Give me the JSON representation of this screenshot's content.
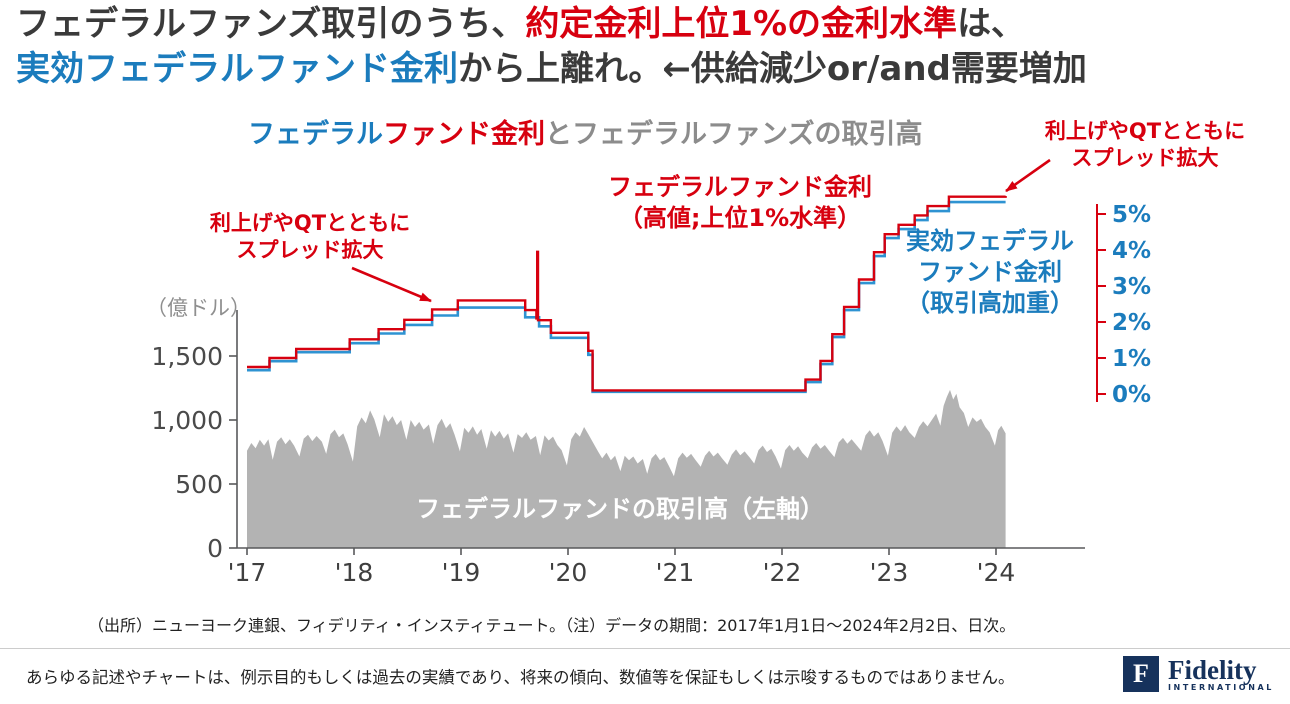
{
  "colors": {
    "red": "#d7000f",
    "blue": "#1b7cbd",
    "blue_line": "#2e93d2",
    "dark": "#3a3a3a",
    "gray": "#8c8c8c",
    "area": "#b3b3b3",
    "axis": "#58595b",
    "navy": "#16325c"
  },
  "headline": {
    "line1": [
      {
        "text": "フェデラルファンズ取引のうち、",
        "color": "dark"
      },
      {
        "text": "約定金利上位1%の金利水準",
        "color": "red"
      },
      {
        "text": "は、",
        "color": "dark"
      }
    ],
    "line2": [
      {
        "text": "実効フェデラルファンド金利",
        "color": "blue"
      },
      {
        "text": "から上離れ。←供給減少or/and需要増加",
        "color": "dark"
      }
    ]
  },
  "title_segments": [
    {
      "text": "フェデラル",
      "color": "blue"
    },
    {
      "text": "ファンド金利",
      "color": "red"
    },
    {
      "text": "とフェデラルファンズの取引高",
      "color": "gray"
    }
  ],
  "annotations": {
    "spread_left": {
      "lines": [
        "利上げやQTとともに",
        "スプレッド拡大"
      ]
    },
    "spread_right": {
      "lines": [
        "利上げやQTとともに",
        "スプレッド拡大"
      ]
    },
    "rate_high": {
      "lines": [
        "フェデラルファンド金利",
        "（高値;上位1%水準）"
      ]
    },
    "rate_eff": {
      "lines": [
        "実効フェデラル",
        "ファンド金利",
        "（取引高加重）"
      ]
    },
    "unit": "（億ドル）",
    "volume_label": "フェデラルファンドの取引高（左軸）"
  },
  "chart_data": {
    "type": "combo",
    "title": "フェデラルファンド金利とフェデラルファンズの取引高",
    "xlabel": "",
    "left_axis": {
      "label": "（億ドル）",
      "ticks": [
        0,
        500,
        1000,
        1500
      ],
      "tick_labels": [
        "0",
        "500",
        "1,000",
        "1,500"
      ],
      "range": [
        0,
        1860
      ]
    },
    "right_axis": {
      "label": "%",
      "ticks": [
        0,
        1,
        2,
        3,
        4,
        5
      ],
      "tick_labels": [
        "0%",
        "1%",
        "2%",
        "3%",
        "4%",
        "5%"
      ],
      "range": [
        0,
        5.6
      ]
    },
    "x_axis": {
      "ticks": [
        2017,
        2018,
        2019,
        2020,
        2021,
        2022,
        2023,
        2024
      ],
      "tick_labels": [
        "'17",
        "'18",
        "'19",
        "'20",
        "'21",
        "'22",
        "'23",
        "'24"
      ],
      "range": [
        2017.0,
        2024.85
      ]
    },
    "series": [
      {
        "name": "フェデラルファンドの取引高（左軸）",
        "type": "area",
        "axis": "left",
        "color_key": "area",
        "points": [
          [
            2017.0,
            760
          ],
          [
            2017.04,
            820
          ],
          [
            2017.08,
            780
          ],
          [
            2017.12,
            845
          ],
          [
            2017.16,
            800
          ],
          [
            2017.2,
            850
          ],
          [
            2017.24,
            690
          ],
          [
            2017.28,
            830
          ],
          [
            2017.32,
            865
          ],
          [
            2017.36,
            810
          ],
          [
            2017.4,
            850
          ],
          [
            2017.44,
            800
          ],
          [
            2017.49,
            715
          ],
          [
            2017.53,
            855
          ],
          [
            2017.57,
            885
          ],
          [
            2017.61,
            835
          ],
          [
            2017.65,
            875
          ],
          [
            2017.7,
            830
          ],
          [
            2017.74,
            735
          ],
          [
            2017.78,
            890
          ],
          [
            2017.82,
            925
          ],
          [
            2017.86,
            865
          ],
          [
            2017.9,
            895
          ],
          [
            2017.94,
            810
          ],
          [
            2017.99,
            675
          ],
          [
            2018.03,
            950
          ],
          [
            2018.07,
            1020
          ],
          [
            2018.11,
            975
          ],
          [
            2018.15,
            1075
          ],
          [
            2018.19,
            1005
          ],
          [
            2018.24,
            865
          ],
          [
            2018.28,
            1045
          ],
          [
            2018.32,
            985
          ],
          [
            2018.36,
            1030
          ],
          [
            2018.4,
            960
          ],
          [
            2018.44,
            1000
          ],
          [
            2018.49,
            845
          ],
          [
            2018.53,
            1000
          ],
          [
            2018.57,
            945
          ],
          [
            2018.61,
            985
          ],
          [
            2018.65,
            925
          ],
          [
            2018.7,
            965
          ],
          [
            2018.74,
            815
          ],
          [
            2018.78,
            960
          ],
          [
            2018.82,
            1010
          ],
          [
            2018.86,
            935
          ],
          [
            2018.9,
            975
          ],
          [
            2018.94,
            885
          ],
          [
            2018.99,
            755
          ],
          [
            2019.03,
            940
          ],
          [
            2019.07,
            900
          ],
          [
            2019.11,
            950
          ],
          [
            2019.15,
            885
          ],
          [
            2019.19,
            930
          ],
          [
            2019.24,
            775
          ],
          [
            2019.28,
            920
          ],
          [
            2019.32,
            870
          ],
          [
            2019.36,
            915
          ],
          [
            2019.4,
            855
          ],
          [
            2019.44,
            895
          ],
          [
            2019.49,
            745
          ],
          [
            2019.53,
            890
          ],
          [
            2019.57,
            860
          ],
          [
            2019.61,
            905
          ],
          [
            2019.65,
            845
          ],
          [
            2019.7,
            875
          ],
          [
            2019.74,
            725
          ],
          [
            2019.78,
            880
          ],
          [
            2019.82,
            840
          ],
          [
            2019.86,
            870
          ],
          [
            2019.9,
            805
          ],
          [
            2019.94,
            765
          ],
          [
            2019.99,
            645
          ],
          [
            2020.03,
            850
          ],
          [
            2020.07,
            905
          ],
          [
            2020.11,
            870
          ],
          [
            2020.15,
            945
          ],
          [
            2020.19,
            890
          ],
          [
            2020.24,
            815
          ],
          [
            2020.28,
            755
          ],
          [
            2020.32,
            700
          ],
          [
            2020.36,
            745
          ],
          [
            2020.4,
            685
          ],
          [
            2020.44,
            720
          ],
          [
            2020.49,
            600
          ],
          [
            2020.53,
            720
          ],
          [
            2020.57,
            685
          ],
          [
            2020.61,
            715
          ],
          [
            2020.65,
            660
          ],
          [
            2020.7,
            695
          ],
          [
            2020.74,
            580
          ],
          [
            2020.78,
            700
          ],
          [
            2020.82,
            735
          ],
          [
            2020.86,
            685
          ],
          [
            2020.9,
            710
          ],
          [
            2020.94,
            645
          ],
          [
            2020.99,
            560
          ],
          [
            2021.03,
            700
          ],
          [
            2021.07,
            745
          ],
          [
            2021.11,
            705
          ],
          [
            2021.15,
            735
          ],
          [
            2021.19,
            690
          ],
          [
            2021.24,
            635
          ],
          [
            2021.28,
            720
          ],
          [
            2021.32,
            760
          ],
          [
            2021.36,
            715
          ],
          [
            2021.4,
            745
          ],
          [
            2021.44,
            700
          ],
          [
            2021.49,
            650
          ],
          [
            2021.53,
            730
          ],
          [
            2021.57,
            770
          ],
          [
            2021.61,
            725
          ],
          [
            2021.65,
            755
          ],
          [
            2021.7,
            705
          ],
          [
            2021.74,
            660
          ],
          [
            2021.78,
            765
          ],
          [
            2021.82,
            800
          ],
          [
            2021.86,
            750
          ],
          [
            2021.9,
            775
          ],
          [
            2021.94,
            715
          ],
          [
            2021.99,
            620
          ],
          [
            2022.03,
            765
          ],
          [
            2022.07,
            805
          ],
          [
            2022.11,
            760
          ],
          [
            2022.15,
            795
          ],
          [
            2022.19,
            745
          ],
          [
            2022.24,
            700
          ],
          [
            2022.28,
            785
          ],
          [
            2022.32,
            820
          ],
          [
            2022.36,
            775
          ],
          [
            2022.4,
            805
          ],
          [
            2022.44,
            760
          ],
          [
            2022.49,
            710
          ],
          [
            2022.53,
            825
          ],
          [
            2022.57,
            860
          ],
          [
            2022.61,
            815
          ],
          [
            2022.65,
            850
          ],
          [
            2022.7,
            800
          ],
          [
            2022.74,
            760
          ],
          [
            2022.78,
            880
          ],
          [
            2022.82,
            920
          ],
          [
            2022.86,
            870
          ],
          [
            2022.9,
            905
          ],
          [
            2022.94,
            835
          ],
          [
            2022.99,
            720
          ],
          [
            2023.03,
            900
          ],
          [
            2023.07,
            950
          ],
          [
            2023.11,
            910
          ],
          [
            2023.15,
            960
          ],
          [
            2023.19,
            905
          ],
          [
            2023.24,
            860
          ],
          [
            2023.28,
            945
          ],
          [
            2023.32,
            990
          ],
          [
            2023.36,
            950
          ],
          [
            2023.4,
            1000
          ],
          [
            2023.44,
            1050
          ],
          [
            2023.48,
            955
          ],
          [
            2023.51,
            1110
          ],
          [
            2023.54,
            1180
          ],
          [
            2023.57,
            1235
          ],
          [
            2023.6,
            1160
          ],
          [
            2023.63,
            1205
          ],
          [
            2023.66,
            1100
          ],
          [
            2023.7,
            1055
          ],
          [
            2023.74,
            945
          ],
          [
            2023.78,
            1020
          ],
          [
            2023.82,
            985
          ],
          [
            2023.86,
            1010
          ],
          [
            2023.9,
            945
          ],
          [
            2023.94,
            905
          ],
          [
            2023.99,
            800
          ],
          [
            2024.02,
            920
          ],
          [
            2024.05,
            955
          ],
          [
            2024.09,
            895
          ]
        ]
      },
      {
        "name": "実効フェデラルファンド金利（取引高加重）",
        "type": "step",
        "axis": "right",
        "color_key": "blue_line",
        "points": [
          [
            2017.0,
            0.66
          ],
          [
            2017.21,
            0.91
          ],
          [
            2017.46,
            1.16
          ],
          [
            2017.96,
            1.41
          ],
          [
            2018.23,
            1.68
          ],
          [
            2018.47,
            1.92
          ],
          [
            2018.73,
            2.18
          ],
          [
            2018.97,
            2.4
          ],
          [
            2019.6,
            2.13
          ],
          [
            2019.73,
            1.88
          ],
          [
            2019.84,
            1.56
          ],
          [
            2020.19,
            1.09
          ],
          [
            2020.23,
            0.06
          ],
          [
            2022.22,
            0.33
          ],
          [
            2022.36,
            0.83
          ],
          [
            2022.47,
            1.58
          ],
          [
            2022.58,
            2.33
          ],
          [
            2022.72,
            3.08
          ],
          [
            2022.86,
            3.83
          ],
          [
            2022.96,
            4.33
          ],
          [
            2023.09,
            4.58
          ],
          [
            2023.24,
            4.83
          ],
          [
            2023.36,
            5.08
          ],
          [
            2023.56,
            5.33
          ],
          [
            2024.09,
            5.33
          ]
        ]
      },
      {
        "name": "フェデラルファンド金利（高値;上位1%水準）",
        "type": "step",
        "axis": "right",
        "color_key": "red",
        "points": [
          [
            2017.0,
            0.75
          ],
          [
            2017.21,
            1.0
          ],
          [
            2017.46,
            1.25
          ],
          [
            2017.96,
            1.52
          ],
          [
            2018.23,
            1.8
          ],
          [
            2018.47,
            2.06
          ],
          [
            2018.73,
            2.35
          ],
          [
            2018.97,
            2.6
          ],
          [
            2019.6,
            2.33
          ],
          [
            2019.705,
            2.1
          ],
          [
            2019.712,
            3.95
          ],
          [
            2019.72,
            2.05
          ],
          [
            2019.84,
            1.7
          ],
          [
            2020.19,
            1.2
          ],
          [
            2020.23,
            0.1
          ],
          [
            2022.22,
            0.4
          ],
          [
            2022.36,
            0.92
          ],
          [
            2022.47,
            1.66
          ],
          [
            2022.58,
            2.42
          ],
          [
            2022.72,
            3.18
          ],
          [
            2022.86,
            3.94
          ],
          [
            2022.96,
            4.44
          ],
          [
            2023.09,
            4.7
          ],
          [
            2023.24,
            4.96
          ],
          [
            2023.36,
            5.22
          ],
          [
            2023.56,
            5.48
          ],
          [
            2024.09,
            5.5
          ]
        ]
      }
    ]
  },
  "footer": {
    "source": "（出所）ニューヨーク連銀、フィデリティ・インスティテュート。（注）データの期間：2017年1月1日～2024年2月2日、日次。",
    "disclaimer": "あらゆる記述やチャートは、例示目的もしくは過去の実績であり、将来の傾向、数値等を保証もしくは示唆するものではありません。",
    "logo_letter": "F",
    "logo_text": "Fidelity",
    "logo_sub": "INTERNATIONAL"
  }
}
